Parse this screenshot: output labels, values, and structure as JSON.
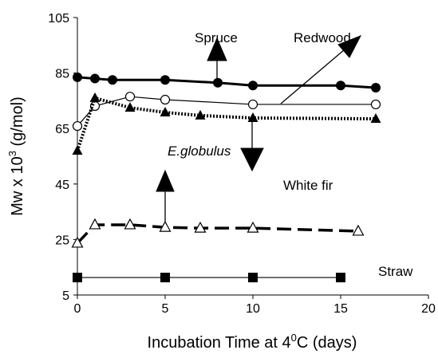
{
  "chart_data": {
    "type": "line",
    "x_label": "Incubation Time at 4",
    "x_label_sup": "0",
    "x_label_end": "C (days)",
    "y_label": "Mw x 10",
    "y_label_sup": "3",
    "y_label_end": " (g/mol)",
    "xlim": [
      0,
      20
    ],
    "xticks": [
      0,
      5,
      10,
      15,
      20
    ],
    "ylim": [
      5,
      105
    ],
    "yticks": [
      5,
      25,
      45,
      65,
      85,
      105
    ],
    "series": [
      {
        "name": "Spruce",
        "color": "#000000",
        "marker": "filled-circle",
        "line_style": "solid-thick",
        "x": [
          0,
          1,
          2,
          5,
          8,
          10,
          15,
          17
        ],
        "values": [
          83.5,
          83,
          82.5,
          82.5,
          81.5,
          80.5,
          80.5,
          79.7
        ]
      },
      {
        "name": "Redwood",
        "color": "#000000",
        "marker": "open-circle",
        "line_style": "solid-thin",
        "x": [
          0,
          1,
          3,
          5,
          10,
          17
        ],
        "values": [
          65.9,
          73.1,
          76.5,
          75.4,
          73.7,
          73.7
        ]
      },
      {
        "name": "White fir",
        "color": "#000000",
        "marker": "filled-triangle",
        "line_style": "dotted",
        "x": [
          0,
          1,
          3,
          5,
          7,
          10,
          17
        ],
        "values": [
          57,
          76,
          72.5,
          70.8,
          69.7,
          68.8,
          68.5
        ]
      },
      {
        "name": "E.globulus",
        "color": "#000000",
        "marker": "open-triangle",
        "line_style": "dashed",
        "x": [
          0,
          1,
          3,
          5,
          7,
          10,
          16
        ],
        "values": [
          23.7,
          30.3,
          30.3,
          29.4,
          29.1,
          29.1,
          28
        ]
      },
      {
        "name": "Straw",
        "color": "#000000",
        "marker": "filled-square",
        "line_style": "solid-thin",
        "x": [
          0,
          5,
          10,
          15
        ],
        "values": [
          11.3,
          11.3,
          11.3,
          11.3
        ]
      }
    ]
  }
}
